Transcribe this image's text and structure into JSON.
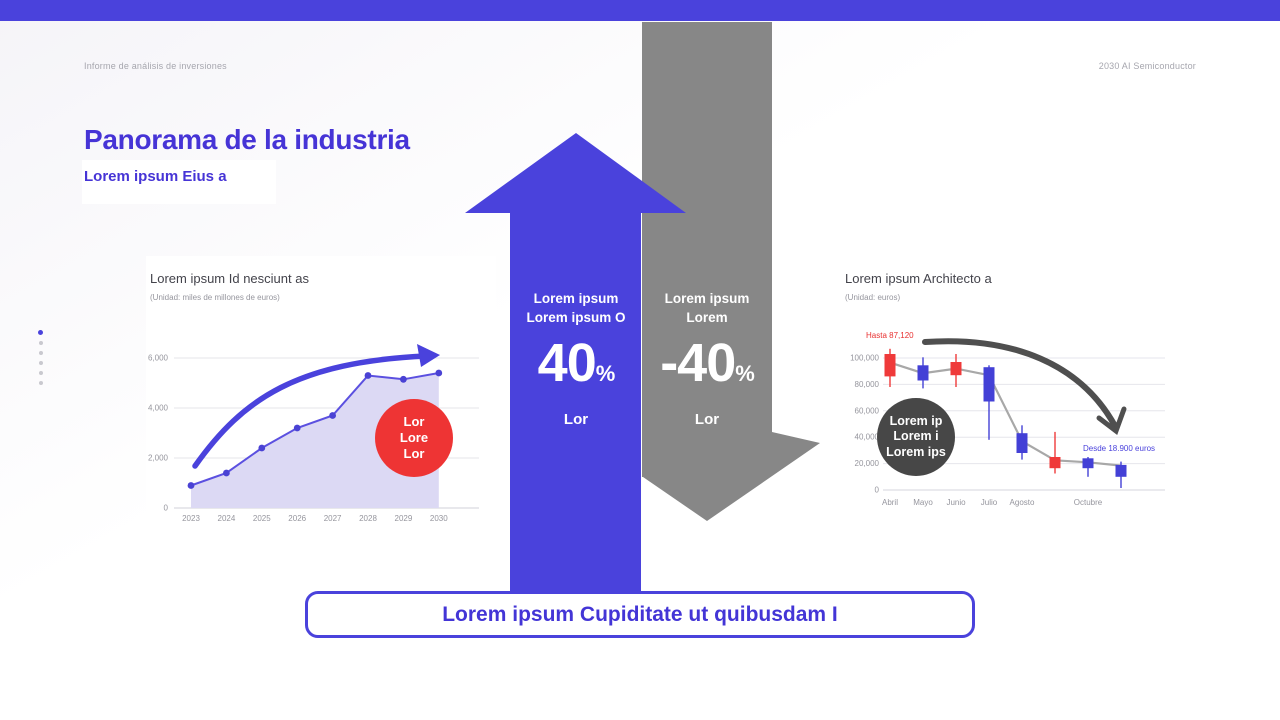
{
  "slide": {
    "header_left": "Informe de análisis de inversiones",
    "header_right": "2030 AI Semiconductor",
    "title": "Panorama de la industria",
    "subtitle": "Lorem ipsum Eius a",
    "banner": "Lorem ipsum Cupiditate ut quibusdam I"
  },
  "up_arrow": {
    "line1": "Lorem ipsum",
    "line2": "Lorem ipsum O",
    "value": "40",
    "percent": "%",
    "caption": "Lor"
  },
  "down_arrow": {
    "line1": "Lorem ipsum",
    "line2": "Lorem",
    "value": "-40",
    "percent": "%",
    "caption": "Lor"
  },
  "colors": {
    "accent": "#4a42dc",
    "gray_arrow": "#878787",
    "red": "#ef3a3a",
    "blue": "#4340d6",
    "dark_circle": "#474747",
    "red_circle": "#ee3434"
  },
  "chart_data": [
    {
      "type": "area",
      "title": "Lorem ipsum Id nesciunt as",
      "subtitle": "(Unidad: miles de millones de euros)",
      "categories": [
        "2023",
        "2024",
        "2025",
        "2026",
        "2027",
        "2028",
        "2029",
        "2030"
      ],
      "values": [
        900,
        1400,
        2400,
        3200,
        3700,
        5300,
        5150,
        5400
      ],
      "ylim": [
        0,
        6000
      ],
      "yticks": [
        0,
        2000,
        4000,
        6000
      ],
      "ytick_labels": [
        "0",
        "2,000",
        "4,000",
        "6,000"
      ],
      "grid": true,
      "line_color": "#5b50e0",
      "dot_color": "#4a42d4",
      "fill_color": "#dcd9f4",
      "callout": {
        "lines": [
          "Lor",
          "Lore",
          "Lor"
        ]
      }
    },
    {
      "type": "candlestick",
      "title": "Lorem ipsum Architecto a",
      "subtitle": "(Unidad: euros)",
      "categories": [
        "Abril",
        "Mayo",
        "Junio",
        "Julio",
        "Agosto",
        "",
        "Octubre",
        ""
      ],
      "candles": [
        {
          "color": "red",
          "high": 107000,
          "low": 78000,
          "body_top": 103000,
          "body_bottom": 86000
        },
        {
          "color": "blue",
          "high": 100500,
          "low": 77000,
          "body_top": 94500,
          "body_bottom": 83000
        },
        {
          "color": "red",
          "high": 103000,
          "low": 78000,
          "body_top": 97000,
          "body_bottom": 87000
        },
        {
          "color": "blue",
          "high": 94500,
          "low": 38000,
          "body_top": 93000,
          "body_bottom": 67000
        },
        {
          "color": "blue",
          "high": 49000,
          "low": 23000,
          "body_top": 43000,
          "body_bottom": 28000
        },
        {
          "color": "red",
          "high": 44000,
          "low": 12500,
          "body_top": 25000,
          "body_bottom": 16500
        },
        {
          "color": "blue",
          "high": 25000,
          "low": 10000,
          "body_top": 24000,
          "body_bottom": 16500
        },
        {
          "color": "blue",
          "high": 21500,
          "low": 1500,
          "body_top": 19000,
          "body_bottom": 10000
        }
      ],
      "trend_line": [
        96500,
        88500,
        92000,
        87000,
        37000,
        22500,
        21000,
        18500
      ],
      "ylim": [
        0,
        100000
      ],
      "yticks": [
        0,
        20000,
        40000,
        60000,
        80000,
        100000
      ],
      "ytick_labels": [
        "0",
        "20,000",
        "40,000",
        "60,000",
        "80,000",
        "100,000"
      ],
      "grid": true,
      "annotations": {
        "high": "Hasta 87,120",
        "low": "Desde 18.900 euros"
      },
      "callout": {
        "lines": [
          "Lorem ip",
          "Lorem i",
          "Lorem ips"
        ]
      }
    }
  ]
}
